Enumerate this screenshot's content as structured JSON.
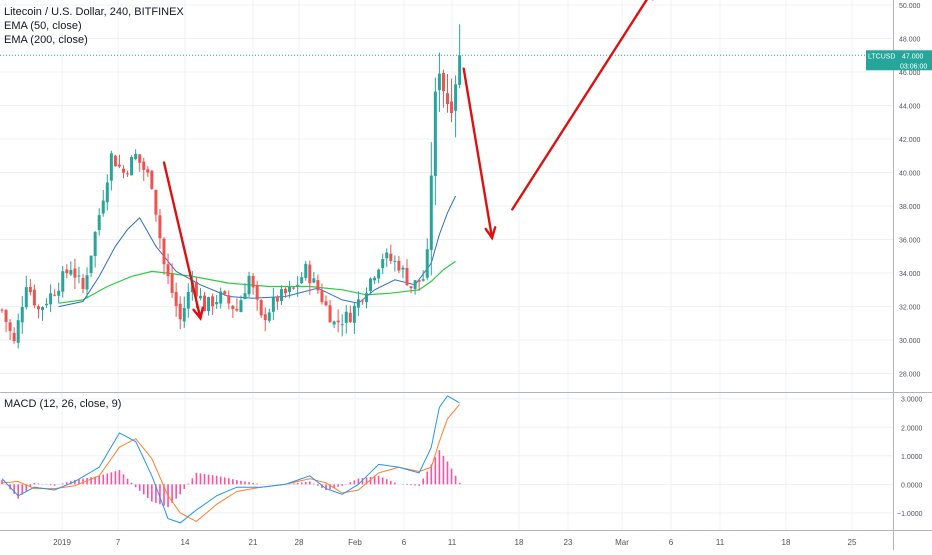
{
  "legend": {
    "title": "Litecoin / U.S. Dollar, 240, BITFINEX",
    "ema50": "EMA (50, close)",
    "ema200": "EMA (200, close)",
    "macd": "MACD (12, 26, close, 9)"
  },
  "price_axis": {
    "ticks": [
      "28.000",
      "30.000",
      "32.000",
      "34.000",
      "36.000",
      "38.000",
      "40.000",
      "42.000",
      "44.000",
      "46.000",
      "48.000",
      "50.000"
    ],
    "tick_values": [
      28,
      30,
      32,
      34,
      36,
      38,
      40,
      42,
      44,
      46,
      48,
      50
    ],
    "range": [
      26.9,
      50.3
    ]
  },
  "macd_axis": {
    "ticks": [
      "−1.0000",
      "0.0000",
      "1.0000",
      "2.0000",
      "3.0000"
    ],
    "tick_values": [
      -1,
      0,
      1,
      2,
      3
    ],
    "range": [
      -1.6,
      3.2
    ]
  },
  "time_axis": {
    "labels": [
      "2019",
      "7",
      "14",
      "21",
      "28",
      "Feb",
      "6",
      "11",
      "18",
      "23",
      "Mar",
      "6",
      "11",
      "18",
      "25"
    ]
  },
  "last_price": {
    "symbol_label": "LTCUSD",
    "price_label": "47.000",
    "countdown": "03:06:00",
    "value": 47.0
  },
  "colors": {
    "up": "#26a69a",
    "down": "#ef5350",
    "ema50": "#2f6cc8",
    "ema200": "#2ecc40",
    "macd_line": "#2196f3",
    "signal_line": "#ff7f2a",
    "histogram": "#ff4f9e",
    "arrow": "#e01010",
    "price_line": "#26a69a",
    "grid": "#eef0f3"
  },
  "chart_data": {
    "type": "candlestick",
    "title": "Litecoin / U.S. Dollar, 240, BITFINEX",
    "price_anchors": [
      {
        "i": 0,
        "p": 31.8
      },
      {
        "i": 3,
        "p": 29.8
      },
      {
        "i": 6,
        "p": 33.5
      },
      {
        "i": 9,
        "p": 31.8
      },
      {
        "i": 13,
        "p": 33.0
      },
      {
        "i": 17,
        "p": 34.4
      },
      {
        "i": 20,
        "p": 33.0
      },
      {
        "i": 24,
        "p": 37.5
      },
      {
        "i": 27,
        "p": 41.0
      },
      {
        "i": 30,
        "p": 40.0
      },
      {
        "i": 33,
        "p": 41.0
      },
      {
        "i": 37,
        "p": 39.4
      },
      {
        "i": 40,
        "p": 34.5
      },
      {
        "i": 44,
        "p": 31.2
      },
      {
        "i": 47,
        "p": 33.5
      },
      {
        "i": 50,
        "p": 32.0
      },
      {
        "i": 54,
        "p": 32.6
      },
      {
        "i": 58,
        "p": 31.8
      },
      {
        "i": 61,
        "p": 33.8
      },
      {
        "i": 64,
        "p": 31.2
      },
      {
        "i": 68,
        "p": 32.5
      },
      {
        "i": 72,
        "p": 33.0
      },
      {
        "i": 75,
        "p": 34.2
      },
      {
        "i": 78,
        "p": 33.0
      },
      {
        "i": 82,
        "p": 31.0
      },
      {
        "i": 86,
        "p": 31.5
      },
      {
        "i": 90,
        "p": 33.2
      },
      {
        "i": 94,
        "p": 35.0
      },
      {
        "i": 98,
        "p": 34.5
      },
      {
        "i": 101,
        "p": 33.2
      },
      {
        "i": 104,
        "p": 33.7
      },
      {
        "i": 105,
        "p": 35.0
      },
      {
        "i": 106,
        "p": 40.0
      },
      {
        "i": 107,
        "p": 44.5
      },
      {
        "i": 108,
        "p": 46.2
      },
      {
        "i": 109,
        "p": 45.0
      },
      {
        "i": 110,
        "p": 44.2
      },
      {
        "i": 111,
        "p": 44.0
      },
      {
        "i": 112,
        "p": 45.5
      },
      {
        "i": 113,
        "p": 47.0
      }
    ],
    "ema50": [
      {
        "i": 14,
        "v": 32.0
      },
      {
        "i": 20,
        "v": 32.3
      },
      {
        "i": 24,
        "v": 33.8
      },
      {
        "i": 28,
        "v": 35.6
      },
      {
        "i": 31,
        "v": 36.6
      },
      {
        "i": 34,
        "v": 37.3
      },
      {
        "i": 38,
        "v": 35.6
      },
      {
        "i": 43,
        "v": 34.1
      },
      {
        "i": 49,
        "v": 33.3
      },
      {
        "i": 56,
        "v": 32.6
      },
      {
        "i": 62,
        "v": 32.5
      },
      {
        "i": 70,
        "v": 32.6
      },
      {
        "i": 78,
        "v": 33.1
      },
      {
        "i": 84,
        "v": 32.4
      },
      {
        "i": 88,
        "v": 32.2
      },
      {
        "i": 92,
        "v": 33.0
      },
      {
        "i": 97,
        "v": 33.6
      },
      {
        "i": 102,
        "v": 33.3
      },
      {
        "i": 106,
        "v": 34.6
      },
      {
        "i": 108,
        "v": 36.3
      },
      {
        "i": 110,
        "v": 37.6
      },
      {
        "i": 112,
        "v": 38.6
      }
    ],
    "ema200": [
      {
        "i": 14,
        "v": 32.2
      },
      {
        "i": 20,
        "v": 32.4
      },
      {
        "i": 26,
        "v": 33.2
      },
      {
        "i": 32,
        "v": 33.8
      },
      {
        "i": 37,
        "v": 34.1
      },
      {
        "i": 41,
        "v": 34.0
      },
      {
        "i": 47,
        "v": 33.8
      },
      {
        "i": 56,
        "v": 33.4
      },
      {
        "i": 66,
        "v": 33.2
      },
      {
        "i": 76,
        "v": 33.2
      },
      {
        "i": 84,
        "v": 33.0
      },
      {
        "i": 90,
        "v": 32.7
      },
      {
        "i": 96,
        "v": 32.8
      },
      {
        "i": 103,
        "v": 33.0
      },
      {
        "i": 106,
        "v": 33.5
      },
      {
        "i": 109,
        "v": 34.2
      },
      {
        "i": 112,
        "v": 34.7
      }
    ],
    "macd_anchors": [
      {
        "i": 0,
        "m": 0.2,
        "s": 0.05
      },
      {
        "i": 4,
        "m": -0.4,
        "s": 0.1
      },
      {
        "i": 8,
        "m": -0.1,
        "s": -0.15
      },
      {
        "i": 13,
        "m": -0.2,
        "s": -0.15
      },
      {
        "i": 18,
        "m": 0.1,
        "s": -0.05
      },
      {
        "i": 24,
        "m": 0.6,
        "s": 0.3
      },
      {
        "i": 29,
        "m": 1.8,
        "s": 1.3
      },
      {
        "i": 33,
        "m": 1.5,
        "s": 1.6
      },
      {
        "i": 37,
        "m": 0.3,
        "s": 0.9
      },
      {
        "i": 41,
        "m": -1.2,
        "s": -0.4
      },
      {
        "i": 44,
        "m": -1.35,
        "s": -1.0
      },
      {
        "i": 48,
        "m": -0.9,
        "s": -1.3
      },
      {
        "i": 53,
        "m": -0.4,
        "s": -0.7
      },
      {
        "i": 58,
        "m": -0.1,
        "s": -0.25
      },
      {
        "i": 64,
        "m": -0.1,
        "s": -0.1
      },
      {
        "i": 70,
        "m": 0.0,
        "s": 0.0
      },
      {
        "i": 76,
        "m": 0.3,
        "s": 0.2
      },
      {
        "i": 80,
        "m": -0.15,
        "s": 0.05
      },
      {
        "i": 84,
        "m": -0.35,
        "s": -0.3
      },
      {
        "i": 88,
        "m": 0.0,
        "s": -0.2
      },
      {
        "i": 93,
        "m": 0.7,
        "s": 0.4
      },
      {
        "i": 98,
        "m": 0.6,
        "s": 0.6
      },
      {
        "i": 103,
        "m": 0.4,
        "s": 0.45
      },
      {
        "i": 106,
        "m": 1.3,
        "s": 0.6
      },
      {
        "i": 108,
        "m": 2.7,
        "s": 1.5
      },
      {
        "i": 110,
        "m": 3.1,
        "s": 2.3
      },
      {
        "i": 113,
        "m": 2.85,
        "s": 2.8
      }
    ],
    "arrows": [
      {
        "from": {
          "i": 40,
          "p": 40.6
        },
        "to": {
          "i": 49,
          "p": 31.3
        }
      },
      {
        "from": {
          "i": 114,
          "p": 46.2
        },
        "to": {
          "i": 121,
          "p": 36.1
        }
      },
      {
        "from": {
          "i": 126,
          "p": 37.8
        },
        "to": {
          "i": 161,
          "p": 51.0
        }
      }
    ]
  }
}
